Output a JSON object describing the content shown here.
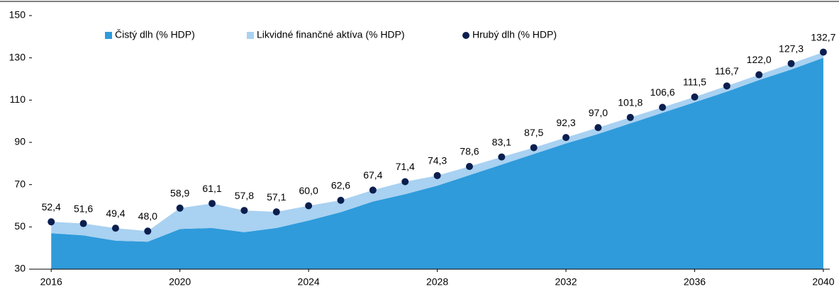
{
  "chart_data": {
    "type": "area",
    "x": [
      2016,
      2017,
      2018,
      2019,
      2020,
      2021,
      2022,
      2023,
      2024,
      2025,
      2026,
      2027,
      2028,
      2029,
      2030,
      2031,
      2032,
      2033,
      2034,
      2035,
      2036,
      2037,
      2038,
      2039,
      2040
    ],
    "series": [
      {
        "name": "Čistý dlh (% HDP)",
        "color": "#2f9bdb",
        "stack": true,
        "values": [
          47,
          46,
          43.5,
          43,
          49,
          49.5,
          47.5,
          49.5,
          53,
          57,
          62,
          65.5,
          69.5,
          74.5,
          79.5,
          84.5,
          89.5,
          94,
          99,
          104,
          109,
          114,
          119.5,
          124.5,
          130
        ]
      },
      {
        "name": "Likvidné finančné aktíva (% HDP)",
        "color": "#a9d1f1",
        "stack": true,
        "values": [
          5.4,
          5.6,
          5.9,
          5,
          9.9,
          11.6,
          10.3,
          7.6,
          7,
          5.6,
          5.4,
          5.9,
          4.8,
          4.1,
          3.6,
          3,
          2.8,
          3,
          2.8,
          2.6,
          2.5,
          2.7,
          2.5,
          2.8,
          2.7
        ]
      },
      {
        "name": "Hrubý dlh (% HDP)",
        "color": "#0b1f4f",
        "kind": "dots",
        "values": [
          52.4,
          51.6,
          49.4,
          48.0,
          58.9,
          61.1,
          57.8,
          57.1,
          60.0,
          62.6,
          67.4,
          71.4,
          74.3,
          78.6,
          83.1,
          87.5,
          92.3,
          97.0,
          101.8,
          106.6,
          111.5,
          116.7,
          122.0,
          127.3,
          132.7
        ],
        "value_labels": [
          "52,4",
          "51,6",
          "49,4",
          "48,0",
          "58,9",
          "61,1",
          "57,8",
          "57,1",
          "60,0",
          "62,6",
          "67,4",
          "71,4",
          "74,3",
          "78,6",
          "83,1",
          "87,5",
          "92,3",
          "97,0",
          "101,8",
          "106,6",
          "111,5",
          "116,7",
          "122,0",
          "127,3",
          "132,7"
        ]
      }
    ],
    "xlim": [
      2015.4,
      2040.2
    ],
    "xticks": [
      2016,
      2020,
      2024,
      2028,
      2032,
      2036,
      2040
    ],
    "ylim": [
      30,
      150
    ],
    "yticks": [
      30,
      50,
      70,
      90,
      110,
      130,
      150
    ],
    "grid": false
  }
}
